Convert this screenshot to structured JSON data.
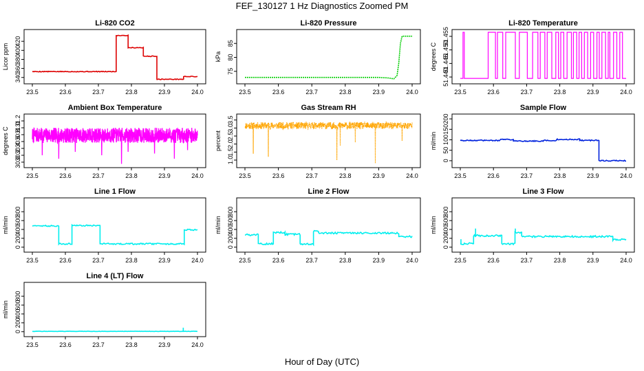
{
  "figure_title": "FEF_130127  1 Hz Diagnostics Zoomed PM",
  "xlabel": "Hour of Day (UTC)",
  "chart_data": [
    {
      "type": "line",
      "title": "Li-820 CO2",
      "ylabel": "Licor ppm",
      "color": "#dd0000",
      "xlim": [
        23.5,
        24.0
      ],
      "ylim": [
        332,
        440
      ],
      "xticks": [
        "23.5",
        "23.6",
        "23.7",
        "23.8",
        "23.9",
        "24.0"
      ],
      "yticks": [
        340,
        360,
        380,
        400,
        420
      ],
      "style": "segments",
      "noise": 0.8,
      "segments": [
        [
          23.5,
          23.754,
          353
        ],
        [
          23.754,
          23.79,
          433
        ],
        [
          23.79,
          23.836,
          406
        ],
        [
          23.836,
          23.877,
          387
        ],
        [
          23.877,
          23.958,
          336
        ],
        [
          23.958,
          24.0,
          342
        ]
      ],
      "spikes": []
    },
    {
      "type": "line",
      "title": "Li-820 Pressure",
      "ylabel": "kPa",
      "color": "#00cc00",
      "xlim": [
        23.5,
        24.0
      ],
      "ylim": [
        71.5,
        89
      ],
      "xticks": [
        "23.5",
        "23.6",
        "23.7",
        "23.8",
        "23.9",
        "24.0"
      ],
      "yticks": [
        75,
        80,
        85
      ],
      "style": "points",
      "points": [
        [
          23.5,
          72.8
        ],
        [
          23.9,
          72.8
        ],
        [
          23.93,
          72.6
        ],
        [
          23.945,
          72.3
        ],
        [
          23.955,
          73.5
        ],
        [
          23.96,
          78
        ],
        [
          23.965,
          85
        ],
        [
          23.97,
          87.6
        ],
        [
          24.0,
          87.6
        ]
      ]
    },
    {
      "type": "line",
      "title": "Li-820 Temperature",
      "ylabel": "degrees C",
      "color": "#ff00ff",
      "xlim": [
        23.5,
        24.0
      ],
      "ylim": [
        51.4385,
        51.4565
      ],
      "xticks": [
        "23.5",
        "23.6",
        "23.7",
        "23.8",
        "23.9",
        "24.0"
      ],
      "yticks": [
        "51.440",
        "51.445",
        "51.450",
        "51.455"
      ],
      "style": "binary",
      "low": 51.4395,
      "high": 51.4565,
      "toggles": [
        23.508,
        23.512,
        23.584,
        23.606,
        23.612,
        23.628,
        23.637,
        23.666,
        23.678,
        23.702,
        23.718,
        23.734,
        23.741,
        23.755,
        23.762,
        23.776,
        23.788,
        23.796,
        23.803,
        23.812,
        23.822,
        23.835,
        23.841,
        23.851,
        23.858,
        23.866,
        23.874,
        23.884,
        23.893,
        23.902,
        23.912,
        23.919,
        23.927,
        23.938,
        23.946,
        23.951,
        23.962,
        23.972,
        23.981,
        23.989
      ]
    },
    {
      "type": "line",
      "title": "Ambient Box Temperature",
      "ylabel": "degrees C",
      "color": "#ff00ff",
      "xlim": [
        23.5,
        24.0
      ],
      "ylim": [
        29.92,
        31.32
      ],
      "xticks": [
        "23.5",
        "23.6",
        "23.7",
        "23.8",
        "23.9",
        "24.0"
      ],
      "yticks": [
        "30.0",
        "30.2",
        "30.4",
        "30.6",
        "30.8",
        "31.0",
        "31.2"
      ],
      "style": "noise",
      "base": 30.78,
      "amp": 0.22,
      "seed": 7,
      "n": 900,
      "spikes": [
        [
          23.53,
          30.2
        ],
        [
          23.58,
          30.1
        ],
        [
          23.63,
          30.3
        ],
        [
          23.71,
          30.2
        ],
        [
          23.77,
          29.95
        ],
        [
          23.79,
          30.3
        ],
        [
          23.87,
          30.25
        ],
        [
          23.93,
          30.1
        ],
        [
          23.97,
          30.35
        ]
      ]
    },
    {
      "type": "scatter",
      "title": "Gas Stream RH",
      "ylabel": "percent",
      "color": "#ffa500",
      "xlim": [
        23.5,
        24.0
      ],
      "ylim": [
        0.7,
        3.7
      ],
      "xticks": [
        "23.5",
        "23.6",
        "23.7",
        "23.8",
        "23.9",
        "24.0"
      ],
      "yticks": [
        "1.0",
        "1.5",
        "2.0",
        "2.5",
        "3.0",
        "3.5"
      ],
      "style": "noise",
      "base": 3.15,
      "amp": 0.22,
      "seed": 11,
      "n": 800,
      "spikes": [
        [
          23.525,
          1.4
        ],
        [
          23.57,
          1.2
        ],
        [
          23.775,
          1.0
        ],
        [
          23.785,
          1.9
        ],
        [
          23.83,
          2.1
        ],
        [
          23.89,
          0.8
        ],
        [
          23.97,
          2.2
        ]
      ]
    },
    {
      "type": "line",
      "title": "Sample Flow",
      "ylabel": "ml/min",
      "color": "#0022dd",
      "xlim": [
        23.5,
        24.0
      ],
      "ylim": [
        -20,
        210
      ],
      "xticks": [
        "23.5",
        "23.6",
        "23.7",
        "23.8",
        "23.9",
        "24.0"
      ],
      "yticks": [
        0,
        50,
        100,
        150,
        200
      ],
      "style": "segments",
      "noise": 2.5,
      "segments": [
        [
          23.5,
          23.62,
          97
        ],
        [
          23.62,
          23.66,
          101
        ],
        [
          23.66,
          23.75,
          94
        ],
        [
          23.75,
          23.79,
          97
        ],
        [
          23.79,
          23.86,
          102
        ],
        [
          23.86,
          23.918,
          97
        ],
        [
          23.918,
          24.0,
          0
        ]
      ],
      "spikes": []
    },
    {
      "type": "line",
      "title": "Line 1 Flow",
      "ylabel": "ml/min",
      "color": "#00eeee",
      "xlim": [
        23.5,
        24.0
      ],
      "ylim": [
        -50,
        1050
      ],
      "xticks": [
        "23.5",
        "23.6",
        "23.7",
        "23.8",
        "23.9",
        "24.0"
      ],
      "yticks": [
        0,
        200,
        400,
        600,
        800
      ],
      "style": "segments",
      "noise": 15,
      "segments": [
        [
          23.5,
          23.58,
          480
        ],
        [
          23.58,
          23.62,
          75
        ],
        [
          23.62,
          23.705,
          490
        ],
        [
          23.705,
          23.74,
          80
        ],
        [
          23.74,
          23.96,
          75
        ],
        [
          23.96,
          24.0,
          390
        ]
      ],
      "spikes": []
    },
    {
      "type": "line",
      "title": "Line 2 Flow",
      "ylabel": "ml/min",
      "color": "#00eeee",
      "xlim": [
        23.5,
        24.0
      ],
      "ylim": [
        -50,
        1050
      ],
      "xticks": [
        "23.5",
        "23.6",
        "23.7",
        "23.8",
        "23.9",
        "24.0"
      ],
      "yticks": [
        0,
        200,
        400,
        600,
        800
      ],
      "style": "segments",
      "noise": 20,
      "segments": [
        [
          23.5,
          23.54,
          280
        ],
        [
          23.54,
          23.585,
          75
        ],
        [
          23.585,
          23.62,
          330
        ],
        [
          23.62,
          23.665,
          290
        ],
        [
          23.665,
          23.705,
          75
        ],
        [
          23.705,
          23.72,
          360
        ],
        [
          23.72,
          23.96,
          320
        ],
        [
          23.96,
          24.0,
          240
        ]
      ],
      "spikes": []
    },
    {
      "type": "line",
      "title": "Line 3 Flow",
      "ylabel": "ml/min",
      "color": "#00eeee",
      "xlim": [
        23.5,
        24.0
      ],
      "ylim": [
        -50,
        1050
      ],
      "xticks": [
        "23.5",
        "23.6",
        "23.7",
        "23.8",
        "23.9",
        "24.0"
      ],
      "yticks": [
        0,
        200,
        400,
        600,
        800
      ],
      "style": "segments",
      "noise": 20,
      "segments": [
        [
          23.5,
          23.54,
          80
        ],
        [
          23.54,
          23.625,
          260
        ],
        [
          23.625,
          23.665,
          75
        ],
        [
          23.665,
          23.685,
          330
        ],
        [
          23.685,
          23.96,
          240
        ],
        [
          23.96,
          24.0,
          170
        ]
      ],
      "spikes": [
        [
          23.502,
          180
        ],
        [
          23.546,
          420
        ],
        [
          23.666,
          420
        ]
      ]
    },
    {
      "type": "line",
      "title": "Line 4 (LT) Flow",
      "ylabel": "ml/min",
      "color": "#00eeee",
      "xlim": [
        23.5,
        24.0
      ],
      "ylim": [
        -50,
        1050
      ],
      "xticks": [
        "23.5",
        "23.6",
        "23.7",
        "23.8",
        "23.9",
        "24.0"
      ],
      "yticks": [
        0,
        200,
        400,
        600,
        800
      ],
      "style": "segments",
      "noise": 3,
      "segments": [
        [
          23.5,
          24.0,
          8
        ]
      ],
      "spikes": [
        [
          23.957,
          90
        ]
      ]
    }
  ]
}
